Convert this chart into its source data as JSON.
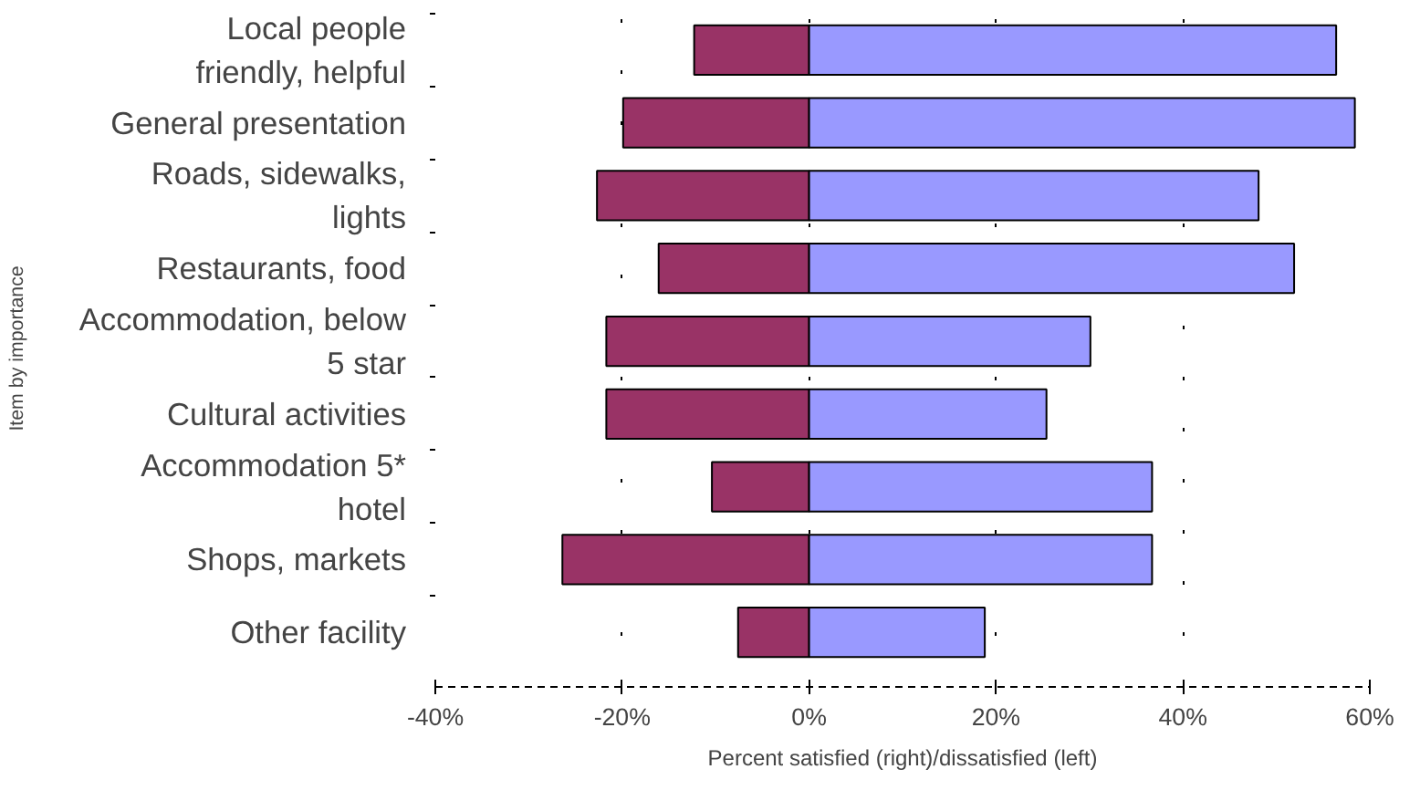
{
  "chart_data": {
    "type": "bar",
    "orientation": "horizontal",
    "stacked": true,
    "xlabel": "Percent satisfied (right)/dissatisfied (left)",
    "ylabel": "Item by importance",
    "categories": [
      "Local people friendly, helpful",
      "General presentation",
      "Roads, sidewalks, lights",
      "Restaurants, food",
      "Accommodation, below 5 star",
      "Cultural activities",
      "Accommodation 5* hotel",
      "Shops, markets",
      "Other facility"
    ],
    "series": [
      {
        "color": "#993366",
        "values": [
          -12.3,
          -19.9,
          -22.7,
          -16.1,
          -21.7,
          -21.7,
          -10.4,
          -26.4,
          -7.6
        ]
      },
      {
        "color": "#9999ff",
        "values": [
          56.4,
          58.4,
          48.1,
          51.9,
          30.1,
          25.4,
          36.7,
          36.7,
          18.8
        ]
      }
    ],
    "xlim": [
      -40,
      60
    ],
    "xticks": [
      {
        "value": -40,
        "label": "-40%"
      },
      {
        "value": -20,
        "label": "-20%"
      },
      {
        "value": 0,
        "label": "0%"
      },
      {
        "value": 20,
        "label": "20%"
      },
      {
        "value": 40,
        "label": "40%"
      },
      {
        "value": 60,
        "label": "60%"
      }
    ],
    "grid": "x"
  }
}
